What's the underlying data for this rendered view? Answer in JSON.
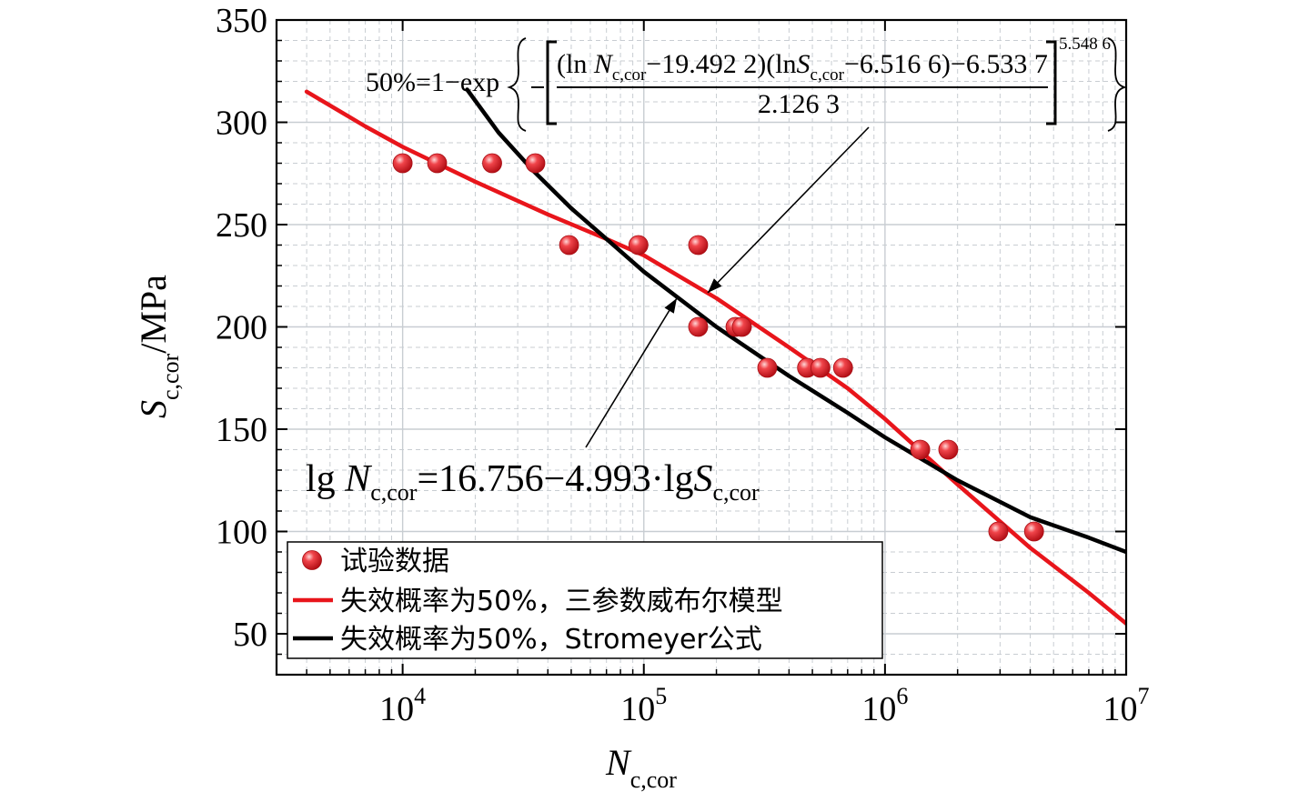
{
  "chart_data": {
    "type": "scatter",
    "x_scale": "log",
    "xlim": [
      3000,
      10000000
    ],
    "ylim": [
      30,
      350
    ],
    "grid": true,
    "legend_position": "bottom-left",
    "xlabel": {
      "main": "N",
      "sub": "c,cor"
    },
    "ylabel": {
      "main": "S",
      "sub": "c,cor",
      "unit": "/MPa"
    },
    "x_ticks": [
      {
        "value": 10000,
        "base": "10",
        "exp": "4"
      },
      {
        "value": 100000,
        "base": "10",
        "exp": "5"
      },
      {
        "value": 1000000,
        "base": "10",
        "exp": "6"
      },
      {
        "value": 10000000,
        "base": "10",
        "exp": "7"
      }
    ],
    "y_ticks": [
      {
        "value": 50,
        "label": "50"
      },
      {
        "value": 100,
        "label": "100"
      },
      {
        "value": 150,
        "label": "150"
      },
      {
        "value": 200,
        "label": "200"
      },
      {
        "value": 250,
        "label": "250"
      },
      {
        "value": 300,
        "label": "300"
      },
      {
        "value": 350,
        "label": "350"
      }
    ],
    "colors": {
      "points": "#e8252b",
      "weibull": "#e8151b",
      "stromeyer": "#000000",
      "grid": "#c8cdd2"
    },
    "series": [
      {
        "name": "试验数据",
        "kind": "points",
        "points": [
          [
            10000,
            280
          ],
          [
            13900,
            280
          ],
          [
            23500,
            280
          ],
          [
            35500,
            280
          ],
          [
            49000,
            240
          ],
          [
            95000,
            240
          ],
          [
            168000,
            240
          ],
          [
            168000,
            200
          ],
          [
            240000,
            200
          ],
          [
            255000,
            200
          ],
          [
            325000,
            180
          ],
          [
            475000,
            180
          ],
          [
            540000,
            180
          ],
          [
            670000,
            180
          ],
          [
            1400000,
            140
          ],
          [
            1830000,
            140
          ],
          [
            2950000,
            100
          ],
          [
            4150000,
            100
          ]
        ]
      },
      {
        "name": "失效概率为50%，三参数威布尔模型",
        "kind": "line",
        "points": [
          [
            4000,
            315
          ],
          [
            7000,
            298
          ],
          [
            10000,
            288
          ],
          [
            20000,
            271
          ],
          [
            40000,
            255
          ],
          [
            70000,
            243
          ],
          [
            100000,
            235
          ],
          [
            200000,
            214
          ],
          [
            400000,
            190
          ],
          [
            700000,
            170
          ],
          [
            1000000,
            155
          ],
          [
            2000000,
            123
          ],
          [
            4000000,
            92
          ],
          [
            7000000,
            70
          ],
          [
            10000000,
            55
          ]
        ]
      },
      {
        "name": "失效概率为50%，Stromeyer公式",
        "kind": "line",
        "points": [
          [
            18500,
            316
          ],
          [
            25000,
            295
          ],
          [
            35000,
            276
          ],
          [
            50000,
            258
          ],
          [
            70000,
            243
          ],
          [
            100000,
            227
          ],
          [
            200000,
            200
          ],
          [
            400000,
            176
          ],
          [
            700000,
            158
          ],
          [
            1000000,
            146
          ],
          [
            2000000,
            125
          ],
          [
            4000000,
            107
          ],
          [
            7000000,
            97
          ],
          [
            10000000,
            90
          ]
        ]
      }
    ],
    "annotations": {
      "weibull_eq": {
        "lhs": "50%=1−exp",
        "numerator": {
          "p1": "(ln ",
          "n": "N",
          "nsub": "c,cor",
          "p2": "−19.492 2)(ln",
          "s": "S",
          "ssub": "c,cor",
          "p3": "−6.516 6)−6.533 7"
        },
        "denominator": "2.126 3",
        "exponent": "5.548 6"
      },
      "stromeyer_eq": {
        "lg1": "lg ",
        "n": "N",
        "nsub": "c,cor",
        "mid": "=16.756−4.993·lg",
        "s": "S",
        "ssub": "c,cor"
      }
    }
  }
}
